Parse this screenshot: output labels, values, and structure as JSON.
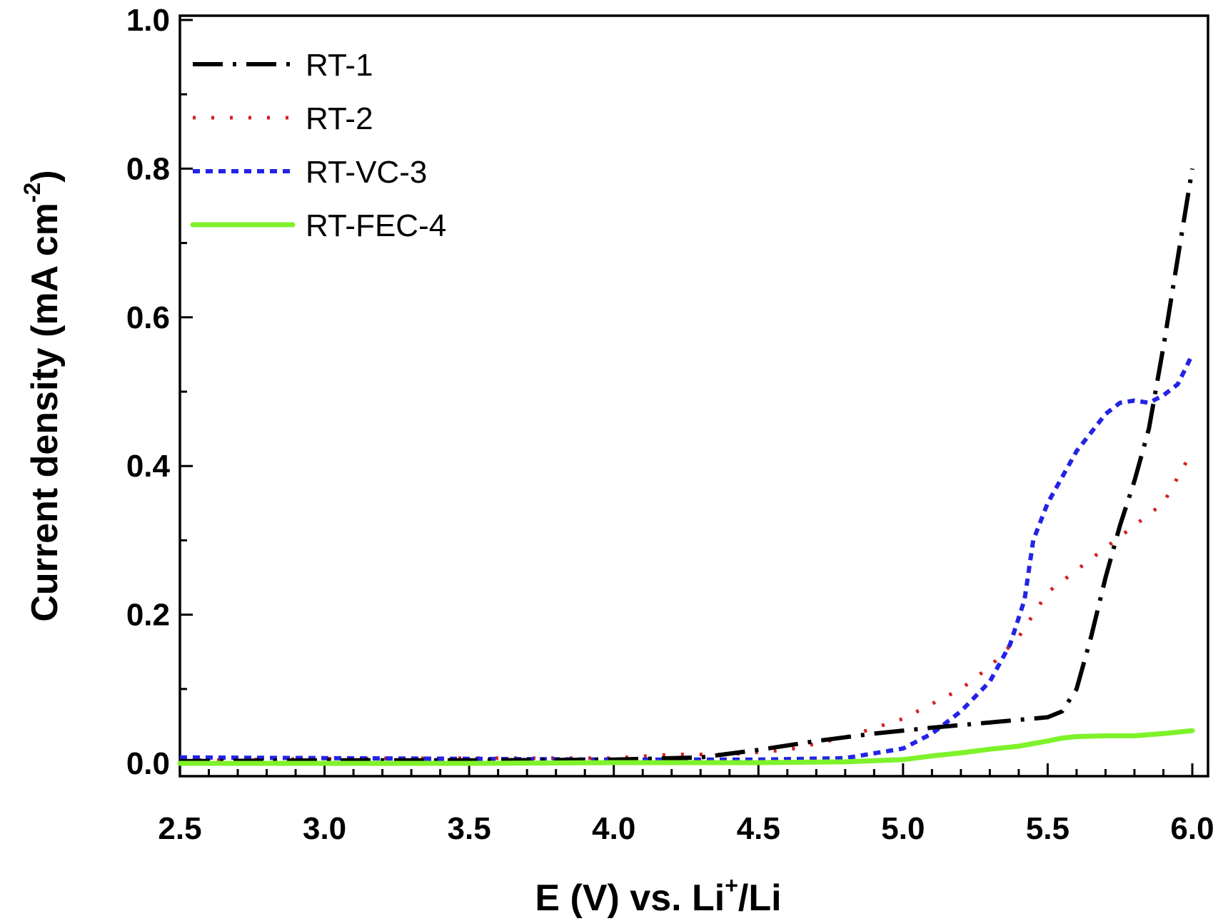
{
  "chart_data": {
    "type": "line",
    "title": "",
    "xlabel": {
      "main": "E (V) vs. Li",
      "sup": "+",
      "tail": "/Li"
    },
    "ylabel": {
      "main": "Current density (mA cm",
      "sup": "-2",
      "tail": ")"
    },
    "xlim": [
      2.5,
      6.0
    ],
    "ylim": [
      0.0,
      1.0
    ],
    "x_ticks": [
      "2.5",
      "3.0",
      "3.5",
      "4.0",
      "4.5",
      "5.0",
      "5.5",
      "6.0"
    ],
    "y_ticks": [
      "0.0",
      "0.2",
      "0.4",
      "0.6",
      "0.8",
      "1.0"
    ],
    "grid": false,
    "legend_position": "top-left",
    "series": [
      {
        "name": "RT-1",
        "color": "#000000",
        "style": "dash-dot",
        "x": [
          2.5,
          3.0,
          3.5,
          4.0,
          4.3,
          4.5,
          4.7,
          4.9,
          5.1,
          5.3,
          5.5,
          5.55,
          5.6,
          5.65,
          5.7,
          5.75,
          5.8,
          5.85,
          5.9,
          5.95,
          6.0
        ],
        "y": [
          0.003,
          0.004,
          0.004,
          0.005,
          0.008,
          0.018,
          0.03,
          0.04,
          0.048,
          0.055,
          0.062,
          0.07,
          0.1,
          0.17,
          0.25,
          0.32,
          0.38,
          0.45,
          0.56,
          0.68,
          0.8
        ]
      },
      {
        "name": "RT-2",
        "color": "#d42020",
        "style": "dot",
        "x": [
          2.5,
          3.0,
          3.5,
          4.0,
          4.2,
          4.4,
          4.6,
          4.8,
          5.0,
          5.1,
          5.2,
          5.3,
          5.4,
          5.5,
          5.6,
          5.7,
          5.8,
          5.9,
          6.0
        ],
        "y": [
          0.004,
          0.006,
          0.007,
          0.007,
          0.012,
          0.012,
          0.018,
          0.035,
          0.06,
          0.08,
          0.1,
          0.13,
          0.17,
          0.23,
          0.26,
          0.29,
          0.32,
          0.35,
          0.42
        ]
      },
      {
        "name": "RT-VC-3",
        "color": "#2323e6",
        "style": "short-dash",
        "x": [
          2.5,
          3.0,
          3.5,
          4.0,
          4.5,
          4.8,
          5.0,
          5.1,
          5.2,
          5.3,
          5.37,
          5.42,
          5.45,
          5.5,
          5.6,
          5.7,
          5.75,
          5.8,
          5.85,
          5.9,
          5.95,
          6.0
        ],
        "y": [
          0.008,
          0.007,
          0.006,
          0.005,
          0.005,
          0.007,
          0.02,
          0.04,
          0.07,
          0.11,
          0.16,
          0.22,
          0.3,
          0.35,
          0.42,
          0.47,
          0.485,
          0.488,
          0.485,
          0.495,
          0.51,
          0.55
        ]
      },
      {
        "name": "RT-FEC-4",
        "color": "#7ef22a",
        "style": "solid",
        "x": [
          2.5,
          3.0,
          3.5,
          4.0,
          4.5,
          4.8,
          5.0,
          5.1,
          5.2,
          5.3,
          5.4,
          5.5,
          5.55,
          5.6,
          5.7,
          5.8,
          5.9,
          6.0
        ],
        "y": [
          0.0,
          0.0,
          0.0,
          0.001,
          0.001,
          0.002,
          0.005,
          0.01,
          0.014,
          0.019,
          0.023,
          0.03,
          0.034,
          0.036,
          0.037,
          0.037,
          0.04,
          0.044
        ]
      }
    ]
  }
}
